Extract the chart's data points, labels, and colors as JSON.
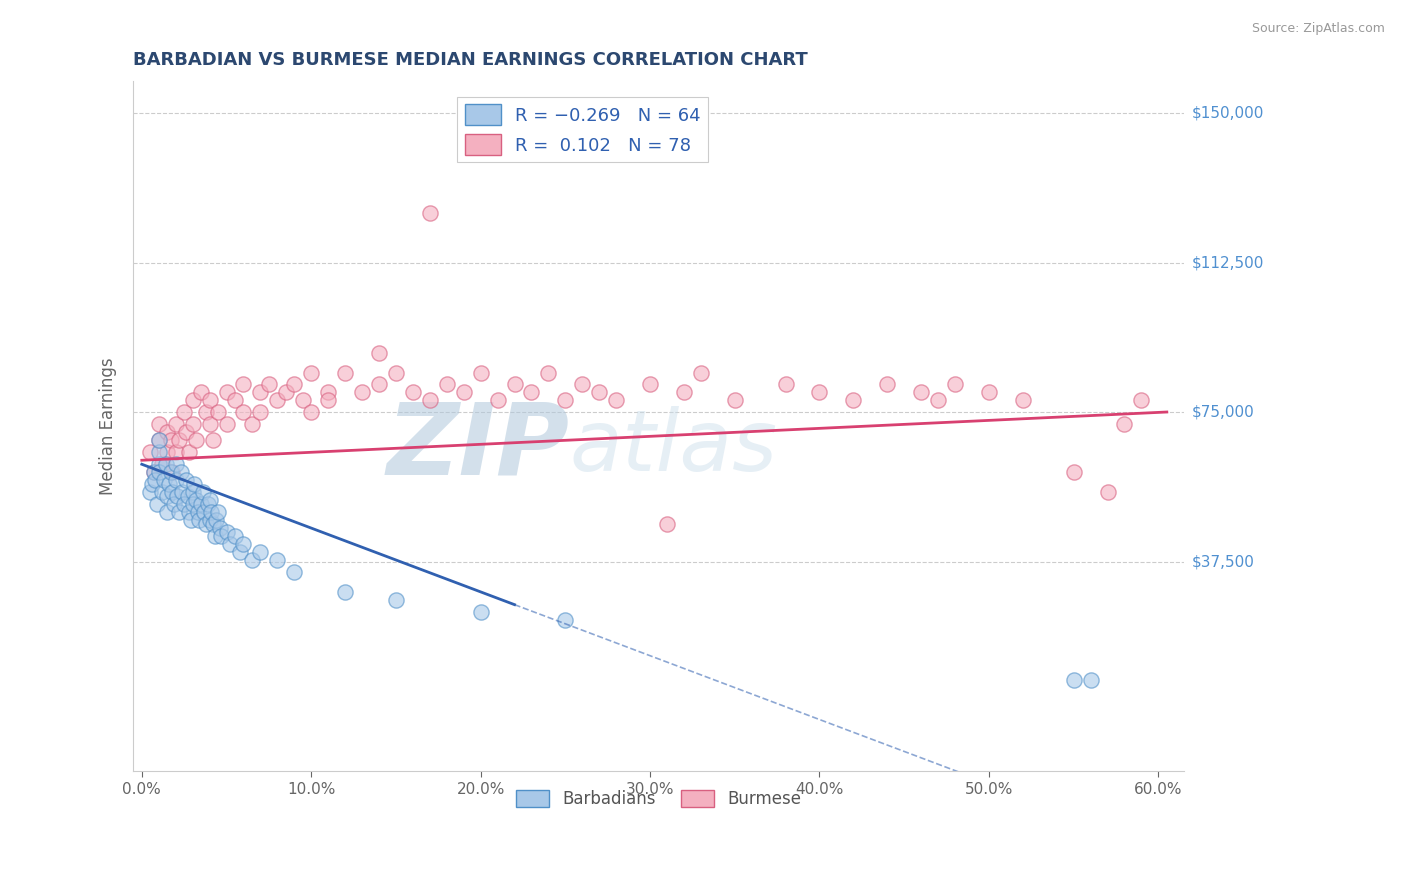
{
  "title": "BARBADIAN VS BURMESE MEDIAN EARNINGS CORRELATION CHART",
  "source": "Source: ZipAtlas.com",
  "xlabel_ticks": [
    "0.0%",
    "10.0%",
    "20.0%",
    "30.0%",
    "40.0%",
    "50.0%",
    "60.0%"
  ],
  "xlabel_vals": [
    0.0,
    0.1,
    0.2,
    0.3,
    0.4,
    0.5,
    0.6
  ],
  "ylabel": "Median Earnings",
  "ylim": [
    -15000,
    158000
  ],
  "xlim": [
    -0.005,
    0.615
  ],
  "color_barbadian": "#a8c8e8",
  "color_burmese": "#f4b0c0",
  "edge_barbadian": "#5090c8",
  "edge_burmese": "#d86080",
  "line_color_barbadian": "#3060b0",
  "line_color_burmese": "#d84070",
  "background_color": "#ffffff",
  "grid_color": "#cccccc",
  "title_color": "#2c4870",
  "tick_color": "#666666",
  "ytick_color": "#5090d0",
  "source_color": "#999999",
  "watermark_color": "#d8e8f0",
  "barbadian_x": [
    0.005,
    0.006,
    0.007,
    0.008,
    0.009,
    0.01,
    0.01,
    0.01,
    0.01,
    0.012,
    0.013,
    0.014,
    0.015,
    0.015,
    0.016,
    0.017,
    0.018,
    0.019,
    0.02,
    0.02,
    0.021,
    0.022,
    0.023,
    0.024,
    0.025,
    0.026,
    0.027,
    0.028,
    0.029,
    0.03,
    0.03,
    0.031,
    0.032,
    0.033,
    0.034,
    0.035,
    0.036,
    0.037,
    0.038,
    0.039,
    0.04,
    0.04,
    0.041,
    0.042,
    0.043,
    0.044,
    0.045,
    0.046,
    0.047,
    0.05,
    0.052,
    0.055,
    0.058,
    0.06,
    0.065,
    0.07,
    0.08,
    0.09,
    0.12,
    0.15,
    0.2,
    0.25,
    0.55,
    0.56
  ],
  "barbadian_y": [
    55000,
    57000,
    60000,
    58000,
    52000,
    62000,
    65000,
    68000,
    60000,
    55000,
    58000,
    62000,
    50000,
    54000,
    57000,
    60000,
    55000,
    52000,
    62000,
    58000,
    54000,
    50000,
    60000,
    55000,
    52000,
    58000,
    54000,
    50000,
    48000,
    55000,
    52000,
    57000,
    53000,
    50000,
    48000,
    52000,
    55000,
    50000,
    47000,
    52000,
    48000,
    53000,
    50000,
    47000,
    44000,
    48000,
    50000,
    46000,
    44000,
    45000,
    42000,
    44000,
    40000,
    42000,
    38000,
    40000,
    38000,
    35000,
    30000,
    28000,
    25000,
    23000,
    8000,
    8000
  ],
  "burmese_x": [
    0.005,
    0.007,
    0.01,
    0.01,
    0.012,
    0.015,
    0.015,
    0.017,
    0.018,
    0.02,
    0.02,
    0.022,
    0.025,
    0.026,
    0.028,
    0.03,
    0.03,
    0.032,
    0.035,
    0.038,
    0.04,
    0.04,
    0.042,
    0.045,
    0.05,
    0.05,
    0.055,
    0.06,
    0.06,
    0.065,
    0.07,
    0.07,
    0.075,
    0.08,
    0.085,
    0.09,
    0.095,
    0.1,
    0.1,
    0.11,
    0.11,
    0.12,
    0.13,
    0.14,
    0.14,
    0.15,
    0.16,
    0.17,
    0.18,
    0.19,
    0.2,
    0.21,
    0.22,
    0.23,
    0.24,
    0.25,
    0.26,
    0.27,
    0.28,
    0.3,
    0.32,
    0.33,
    0.35,
    0.38,
    0.4,
    0.42,
    0.44,
    0.46,
    0.47,
    0.48,
    0.5,
    0.52,
    0.55,
    0.57,
    0.58,
    0.59,
    0.17,
    0.31
  ],
  "burmese_y": [
    65000,
    60000,
    68000,
    72000,
    62000,
    70000,
    65000,
    68000,
    60000,
    72000,
    65000,
    68000,
    75000,
    70000,
    65000,
    78000,
    72000,
    68000,
    80000,
    75000,
    72000,
    78000,
    68000,
    75000,
    80000,
    72000,
    78000,
    82000,
    75000,
    72000,
    80000,
    75000,
    82000,
    78000,
    80000,
    82000,
    78000,
    85000,
    75000,
    80000,
    78000,
    85000,
    80000,
    82000,
    90000,
    85000,
    80000,
    78000,
    82000,
    80000,
    85000,
    78000,
    82000,
    80000,
    85000,
    78000,
    82000,
    80000,
    78000,
    82000,
    80000,
    85000,
    78000,
    82000,
    80000,
    78000,
    82000,
    80000,
    78000,
    82000,
    80000,
    78000,
    60000,
    55000,
    72000,
    78000,
    125000,
    47000
  ],
  "title_fontsize": 13,
  "tick_fontsize": 11,
  "legend_fontsize": 13,
  "ylabel_fontsize": 12,
  "source_fontsize": 9,
  "watermark_fontsize": 72,
  "scatter_size": 120,
  "scatter_alpha": 0.6,
  "scatter_lw": 1.0,
  "line_lw": 2.0,
  "barb_line_x0": 0.0,
  "barb_line_x_solid_end": 0.22,
  "barb_line_x_dash_end": 0.6,
  "burm_line_x0": 0.0,
  "burm_line_x1": 0.605,
  "barb_intercept": 62000,
  "barb_slope": -160000,
  "burm_intercept": 63000,
  "burm_slope": 20000
}
